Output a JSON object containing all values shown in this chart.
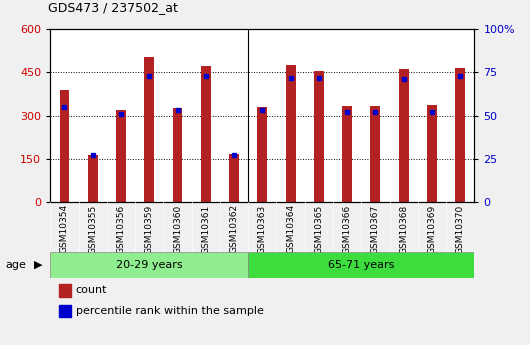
{
  "title": "GDS473 / 237502_at",
  "samples": [
    "GSM10354",
    "GSM10355",
    "GSM10356",
    "GSM10359",
    "GSM10360",
    "GSM10361",
    "GSM10362",
    "GSM10363",
    "GSM10364",
    "GSM10365",
    "GSM10366",
    "GSM10367",
    "GSM10368",
    "GSM10369",
    "GSM10370"
  ],
  "count": [
    390,
    163,
    320,
    505,
    328,
    472,
    168,
    330,
    476,
    454,
    335,
    334,
    462,
    337,
    464
  ],
  "percentile": [
    55,
    27,
    51,
    73,
    53,
    73,
    27,
    53,
    72,
    72,
    52,
    52,
    71,
    52,
    73
  ],
  "group1_label": "20-29 years",
  "group2_label": "65-71 years",
  "group1_count": 7,
  "group2_count": 8,
  "left_ylim": [
    0,
    600
  ],
  "right_ylim": [
    0,
    100
  ],
  "left_yticks": [
    0,
    150,
    300,
    450,
    600
  ],
  "right_yticks": [
    0,
    25,
    50,
    75,
    100
  ],
  "right_yticklabels": [
    "0",
    "25",
    "50",
    "75",
    "100%"
  ],
  "bar_color": "#b22222",
  "marker_color": "#0000cc",
  "bg_color": "#f0f0f0",
  "plot_bg": "#ffffff",
  "group1_bg_color": "#90ee90",
  "group2_bg_color": "#3ddd3d",
  "age_label": "age",
  "legend_count_label": "count",
  "legend_pct_label": "percentile rank within the sample",
  "left_tick_color": "#cc0000",
  "right_tick_color": "#0000cc",
  "bar_width": 0.35
}
